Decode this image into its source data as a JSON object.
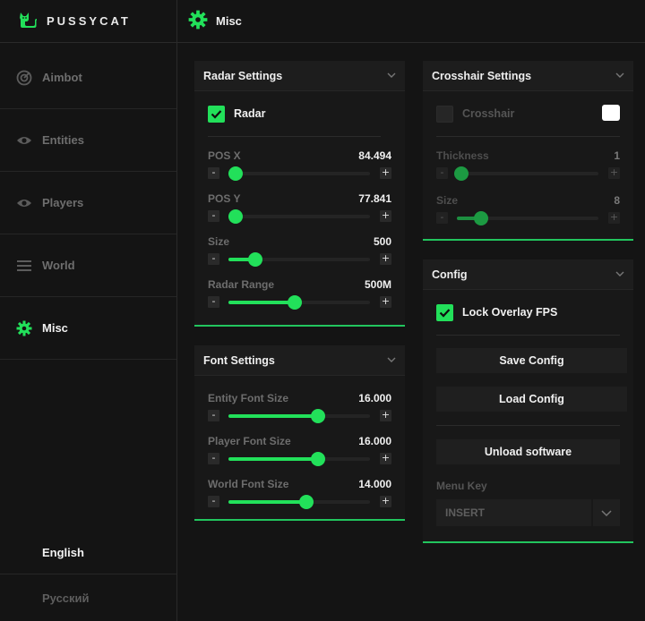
{
  "app": {
    "name": "PUSSYCAT",
    "accent": "#22e05a"
  },
  "sidebar": {
    "items": [
      {
        "label": "Aimbot",
        "icon": "target-icon",
        "active": false
      },
      {
        "label": "Entities",
        "icon": "eye-icon",
        "active": false
      },
      {
        "label": "Players",
        "icon": "eye-icon",
        "active": false
      },
      {
        "label": "World",
        "icon": "menu-icon",
        "active": false
      },
      {
        "label": "Misc",
        "icon": "gear-icon",
        "active": true
      }
    ],
    "languages": [
      {
        "label": "English",
        "active": true
      },
      {
        "label": "Русский",
        "active": false
      }
    ]
  },
  "header": {
    "title": "Misc",
    "icon": "gear-icon"
  },
  "radar": {
    "title": "Radar Settings",
    "toggle": {
      "label": "Radar",
      "checked": true
    },
    "sliders": [
      {
        "label": "POS X",
        "value": "84.494",
        "fraction": 0.05
      },
      {
        "label": "POS Y",
        "value": "77.841",
        "fraction": 0.05
      },
      {
        "label": "Size",
        "value": "500",
        "fraction": 0.19
      },
      {
        "label": "Radar Range",
        "value": "500M",
        "fraction": 0.47
      }
    ],
    "minus": "-",
    "plus": "+"
  },
  "font": {
    "title": "Font Settings",
    "sliders": [
      {
        "label": "Entity Font Size",
        "value": "16.000",
        "fraction": 0.63
      },
      {
        "label": "Player Font Size",
        "value": "16.000",
        "fraction": 0.63
      },
      {
        "label": "World Font Size",
        "value": "14.000",
        "fraction": 0.55
      }
    ],
    "minus": "-",
    "plus": "+"
  },
  "crosshair": {
    "title": "Crosshair Settings",
    "toggle": {
      "label": "Crosshair",
      "checked": false
    },
    "color_swatch": "#ffffff",
    "sliders": [
      {
        "label": "Thickness",
        "value": "1",
        "fraction": 0.03
      },
      {
        "label": "Size",
        "value": "8",
        "fraction": 0.17
      }
    ],
    "minus": "-",
    "plus": "+"
  },
  "config": {
    "title": "Config",
    "toggle": {
      "label": "Lock Overlay FPS",
      "checked": true
    },
    "save_label": "Save Config",
    "load_label": "Load Config",
    "unload_label": "Unload software",
    "menu_key_label": "Menu Key",
    "menu_key_value": "INSERT"
  }
}
